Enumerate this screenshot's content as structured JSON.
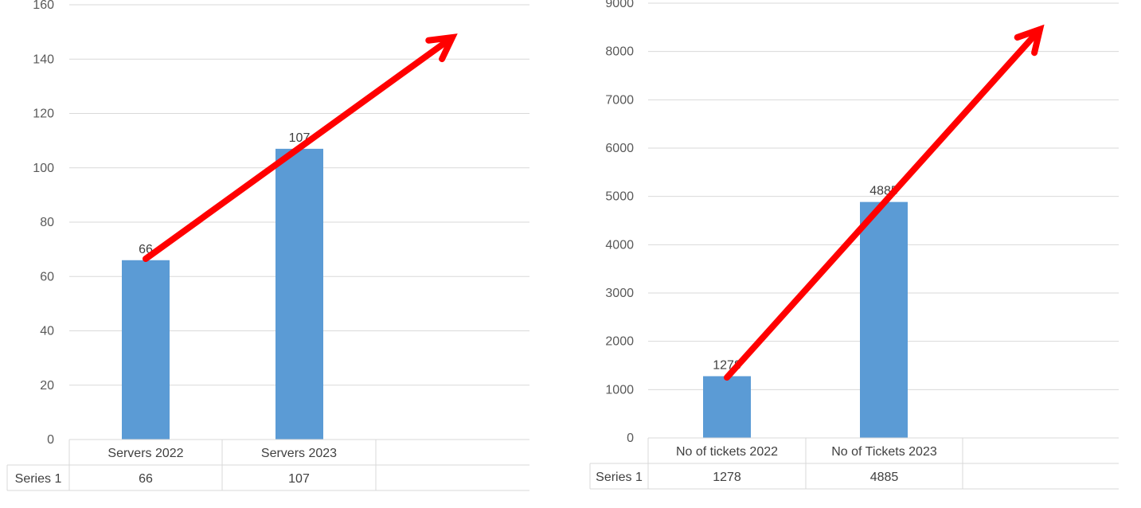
{
  "chart_data": [
    {
      "type": "bar",
      "categories": [
        "Servers 2022",
        "Servers 2023"
      ],
      "series": [
        {
          "name": "Series 1",
          "values": [
            66,
            107
          ]
        }
      ],
      "ylim": [
        0,
        160
      ],
      "yticks": [
        0,
        20,
        40,
        60,
        80,
        100,
        120,
        140,
        160
      ],
      "grid": true,
      "data_table": true,
      "bar_color": "#5b9bd5",
      "annotation": "red upward trend arrow"
    },
    {
      "type": "bar",
      "categories": [
        "No of tickets 2022",
        "No of Tickets  2023"
      ],
      "series": [
        {
          "name": "Series 1",
          "values": [
            1278,
            4885
          ]
        }
      ],
      "ylim": [
        0,
        9000
      ],
      "yticks": [
        0,
        1000,
        2000,
        3000,
        4000,
        5000,
        6000,
        7000,
        8000,
        9000
      ],
      "grid": true,
      "data_table": true,
      "bar_color": "#5b9bd5",
      "annotation": "red upward trend arrow"
    }
  ],
  "colors": {
    "bar": "#5b9bd5",
    "arrow": "#ff0000",
    "grid": "#d9d9d9",
    "text": "#595959"
  }
}
